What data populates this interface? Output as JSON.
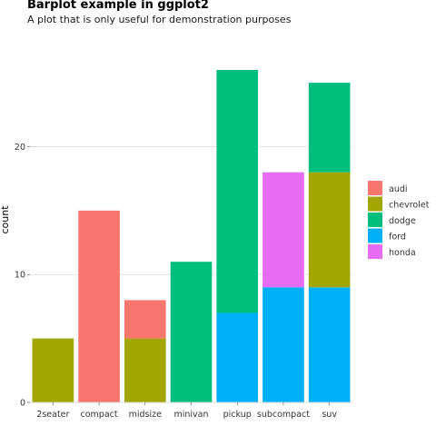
{
  "chart_data": {
    "type": "bar",
    "stacked": true,
    "title": "Barplot example in ggplot2",
    "subtitle": "A plot that is only useful for demonstration purposes",
    "xlabel": "",
    "ylabel": "count",
    "ylim": [
      0,
      26.5
    ],
    "yticks": [
      0,
      10,
      20
    ],
    "grid": "horizontal",
    "legend_position": "right",
    "categories": [
      "2seater",
      "compact",
      "midsize",
      "minivan",
      "pickup",
      "subcompact",
      "suv"
    ],
    "series": [
      {
        "name": "audi",
        "color": "#F8766D",
        "values": [
          0,
          15,
          3,
          0,
          0,
          0,
          0
        ]
      },
      {
        "name": "chevrolet",
        "color": "#A3A500",
        "values": [
          5,
          0,
          5,
          0,
          0,
          0,
          9
        ]
      },
      {
        "name": "dodge",
        "color": "#00BF7D",
        "values": [
          0,
          0,
          0,
          11,
          19,
          0,
          7
        ]
      },
      {
        "name": "ford",
        "color": "#00B0F6",
        "values": [
          0,
          0,
          0,
          0,
          7,
          9,
          9
        ]
      },
      {
        "name": "honda",
        "color": "#E76BF3",
        "values": [
          0,
          0,
          0,
          0,
          0,
          9,
          0
        ]
      }
    ],
    "stack_order": [
      "ford",
      "honda",
      "chevrolet",
      "dodge",
      "audi"
    ]
  }
}
